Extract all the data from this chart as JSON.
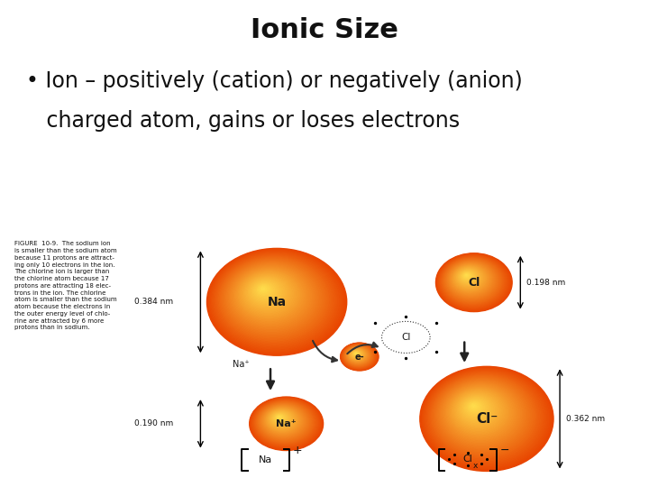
{
  "title": "Ionic Size",
  "bullet_line1": "• Ion – positively (cation) or negatively (anion)",
  "bullet_line2": "   charged atom, gains or loses electrons",
  "bg_color": "#ffffff",
  "title_fontsize": 22,
  "bullet_fontsize": 17,
  "img_bg": "#e8e3d5",
  "figure_caption": "FIGURE  10-9.  The sodium ion\nis smaller than the sodium atom\nbecause 11 protons are attract-\ning only 10 electrons in the ion.\nThe chlorine ion is larger than\nthe chlorine atom because 17\nprotons are attracting 18 elec-\ntrons in the ion. The chlorine\natom is smaller than the sodium\natom because the electrons in\nthe outer energy level of chlo-\nrine are attracted by 6 more\nprotons than in sodium.",
  "outer_color": [
    0.91,
    0.27,
    0.0
  ],
  "inner_color": [
    1.0,
    0.87,
    0.3
  ]
}
